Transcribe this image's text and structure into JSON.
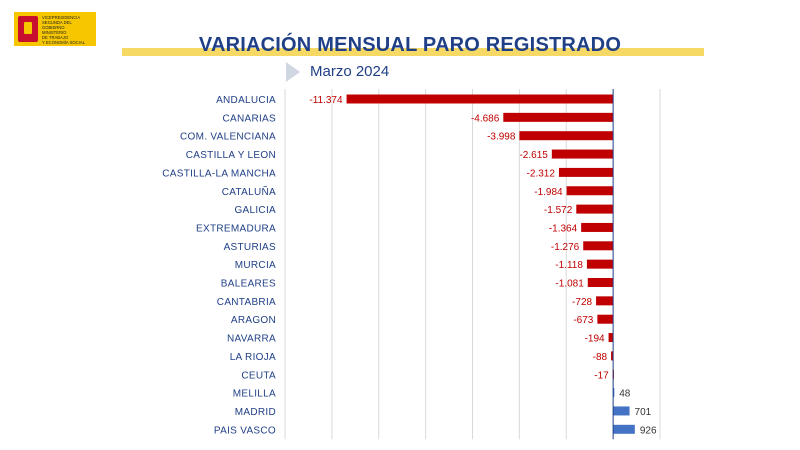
{
  "logo": {
    "name": "spain-government-logo-icon",
    "lines": [
      "Vicepresidencia",
      "Segunda del Gobierno",
      "Ministerio",
      "de Trabajo",
      "y Economía Social"
    ]
  },
  "header": {
    "title": "VARIACIÓN MENSUAL PARO REGISTRADO",
    "subtitle": "Marzo 2024"
  },
  "colors": {
    "negative": "#c00000",
    "positive": "#4472c4",
    "title": "#1f3f86",
    "band": "#f6d865"
  },
  "chart_data": {
    "type": "bar",
    "orientation": "horizontal",
    "categories": [
      "ANDALUCIA",
      "CANARIAS",
      "COM. VALENCIANA",
      "CASTILLA Y LEON",
      "CASTILLA-LA MANCHA",
      "CATALUÑA",
      "GALICIA",
      "EXTREMADURA",
      "ASTURIAS",
      "MURCIA",
      "BALEARES",
      "CANTABRIA",
      "ARAGON",
      "NAVARRA",
      "LA RIOJA",
      "CEUTA",
      "MELILLA",
      "MADRID",
      "PAIS VASCO"
    ],
    "values": [
      -11374,
      -4686,
      -3998,
      -2615,
      -2312,
      -1984,
      -1572,
      -1364,
      -1276,
      -1118,
      -1081,
      -728,
      -673,
      -194,
      -88,
      -17,
      48,
      701,
      926
    ],
    "data_labels": [
      "-11.374",
      "-4.686",
      "-3.998",
      "-2.615",
      "-2.312",
      "-1.984",
      "-1.572",
      "-1.364",
      "-1.276",
      "-1.118",
      "-1.081",
      "-728",
      "-673",
      "-194",
      "-88",
      "-17",
      "48",
      "701",
      "926"
    ],
    "xlim": [
      -14000,
      2000
    ],
    "grid": true
  }
}
